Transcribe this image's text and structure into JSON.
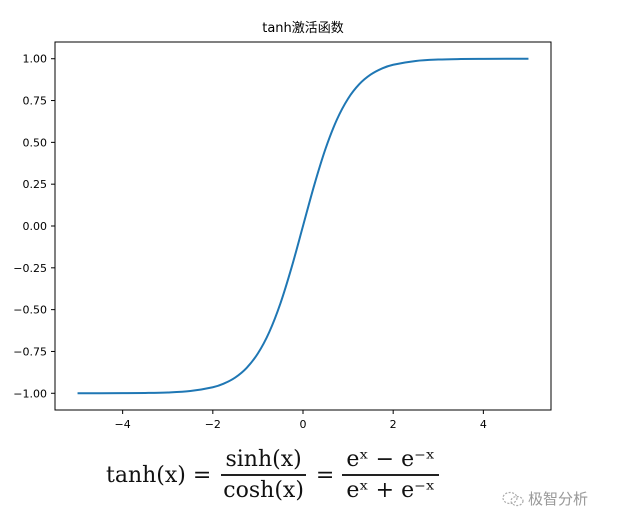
{
  "chart_data": {
    "type": "line",
    "title": "tanh激活函数",
    "xlabel": "",
    "ylabel": "",
    "xlim": [
      -5.5,
      5.5
    ],
    "ylim": [
      -1.1,
      1.1
    ],
    "xticks": [
      -4,
      -2,
      0,
      2,
      4
    ],
    "xtick_labels": [
      "−4",
      "−2",
      "0",
      "2",
      "4"
    ],
    "yticks": [
      1.0,
      0.75,
      0.5,
      0.25,
      0.0,
      -0.25,
      -0.5,
      -0.75,
      -1.0
    ],
    "ytick_labels": [
      "1.00",
      "0.75",
      "0.50",
      "0.25",
      "0.00",
      "−0.25",
      "−0.50",
      "−0.75",
      "−1.00"
    ],
    "grid": false,
    "series": [
      {
        "color": "#1f77b4",
        "x": [
          -5,
          -4.5,
          -4,
          -3.5,
          -3,
          -2.5,
          -2,
          -1.75,
          -1.5,
          -1.25,
          -1,
          -0.75,
          -0.5,
          -0.25,
          0,
          0.25,
          0.5,
          0.75,
          1,
          1.25,
          1.5,
          1.75,
          2,
          2.5,
          3,
          3.5,
          4,
          4.5,
          5
        ],
        "y": [
          -0.9999,
          -0.9998,
          -0.9993,
          -0.9982,
          -0.9951,
          -0.9866,
          -0.964,
          -0.9414,
          -0.9051,
          -0.8483,
          -0.7616,
          -0.6351,
          -0.4621,
          -0.2449,
          0,
          0.2449,
          0.4621,
          0.6351,
          0.7616,
          0.8483,
          0.9051,
          0.9414,
          0.964,
          0.9866,
          0.9951,
          0.9982,
          0.9993,
          0.9998,
          0.9999
        ]
      }
    ]
  },
  "formula": {
    "lhs": "tanh(x) =",
    "num1": "sinh(x)",
    "den1": "cosh(x)",
    "eq": "=",
    "num2": "eˣ − e⁻ˣ",
    "den2": "eˣ + e⁻ˣ"
  },
  "watermark": {
    "text": "极智分析",
    "icon": "wechat-icon"
  }
}
